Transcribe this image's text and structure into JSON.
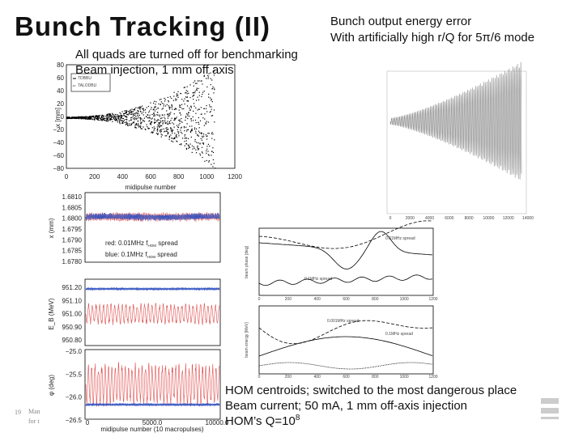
{
  "title": "Bunch Tracking (II)",
  "top_right_note": [
    "Bunch output energy error",
    "With artificially high r/Q for 5π/6 mode"
  ],
  "left_note": [
    "All quads are turned off for benchmarking",
    "Beam injection, 1 mm off axis"
  ],
  "orbit_plot": {
    "ylabel": "x [mm]",
    "xlabel": "midipulse number",
    "yticks": [
      "80",
      "60",
      "40",
      "20",
      "0",
      "−20",
      "−40",
      "−60",
      "−80"
    ],
    "xticks": [
      "0",
      "200",
      "400",
      "600",
      "800",
      "1000",
      "1200"
    ],
    "legend": [
      "TDBBU",
      "TALODBU"
    ]
  },
  "energy_error_plot": {
    "xticks": [
      "0",
      "2000",
      "4000",
      "6000",
      "8000",
      "10000",
      "12000",
      "14000"
    ]
  },
  "stack_plot": {
    "panels": [
      {
        "ylabel": "x (mm)",
        "yticks": [
          "1.6810",
          "1.6805",
          "1.6800",
          "1.6795",
          "1.6790",
          "1.6785",
          "1.6780"
        ]
      },
      {
        "ylabel": "E_B (MeV)",
        "yticks": [
          "951.20",
          "951.10",
          "951.00",
          "950.90",
          "950.80"
        ]
      },
      {
        "ylabel": "φ (deg)",
        "yticks": [
          "−25.0",
          "−25.5",
          "−26.0",
          "−26.5"
        ]
      }
    ],
    "legend": [
      [
        "red: 0.01MHz f",
        "HOM",
        " spread"
      ],
      [
        "blue: 0.1MHz f",
        "HOM",
        " spread"
      ]
    ],
    "xlabel": "midipulse number (10 macropulses)",
    "xticks": [
      "0",
      "5000.0",
      "10000.0"
    ]
  },
  "spread_plot": {
    "phase_label": "beam phase [deg]",
    "energy_label": "beam energy [MeV]",
    "annotations": [
      "0.01MHz spread",
      "0.1MHz spread",
      "0.001MHz spread",
      "0.1MHz spread"
    ],
    "xticks": [
      "0",
      "200",
      "400",
      "600",
      "800",
      "1000",
      "1200"
    ]
  },
  "bottom_note": [
    "HOM centroids; switched to the most dangerous place",
    "Beam current; 50 mA, 1 mm off-axis injection",
    "HOM’s Q=10",
    "8"
  ],
  "footer": {
    "page": "19",
    "lines": [
      "Man",
      "for t"
    ]
  }
}
